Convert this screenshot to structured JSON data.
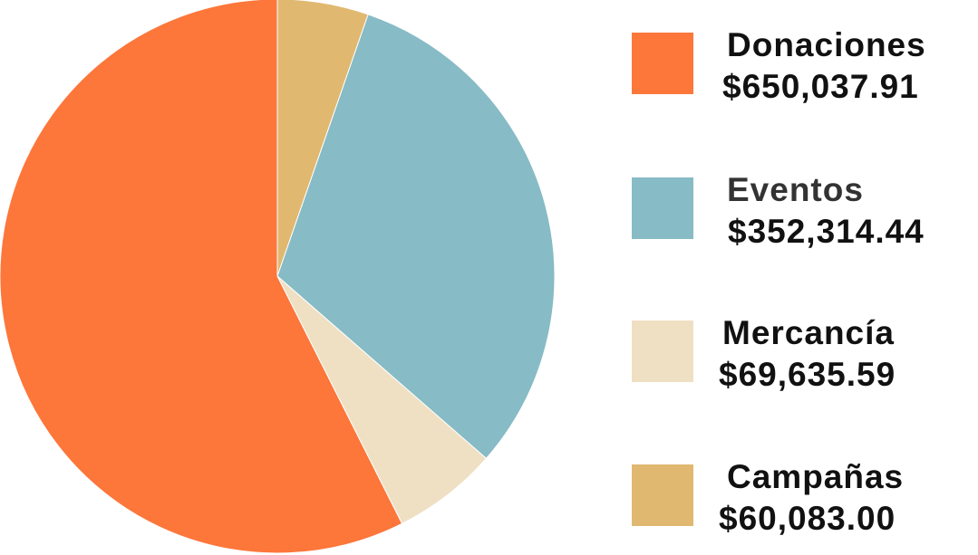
{
  "chart_data": {
    "type": "pie",
    "start_angle_deg": 0,
    "direction": "clockwise",
    "slices": [
      {
        "name": "Campañas",
        "value_label": "$60,083.00",
        "value": 60083.0,
        "color": "#E0B870"
      },
      {
        "name": "Eventos",
        "value_label": "$352,314.44",
        "value": 352314.44,
        "color": "#87BBC5"
      },
      {
        "name": "Mercancía",
        "value_label": "$69,635.59",
        "value": 69635.59,
        "color": "#EFE0C3"
      },
      {
        "name": "Donaciones",
        "value_label": "$650,037.91",
        "value": 650037.91,
        "color": "#FD763A"
      }
    ],
    "legend": {
      "placement": "right",
      "order": [
        "Donaciones",
        "Eventos",
        "Mercancía",
        "Campañas"
      ]
    }
  }
}
